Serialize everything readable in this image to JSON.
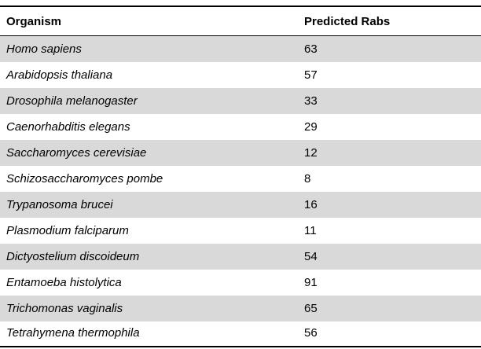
{
  "table": {
    "headers": {
      "organism": "Organism",
      "predicted_rabs": "Predicted Rabs"
    },
    "rows": [
      {
        "organism": "Homo sapiens",
        "predicted_rabs": "63"
      },
      {
        "organism": "Arabidopsis thaliana",
        "predicted_rabs": "57"
      },
      {
        "organism": "Drosophila melanogaster",
        "predicted_rabs": "33"
      },
      {
        "organism": "Caenorhabditis elegans",
        "predicted_rabs": "29"
      },
      {
        "organism": "Saccharomyces cerevisiae",
        "predicted_rabs": "12"
      },
      {
        "organism": "Schizosaccharomyces pombe",
        "predicted_rabs": "8"
      },
      {
        "organism": "Trypanosoma brucei",
        "predicted_rabs": "16"
      },
      {
        "organism": "Plasmodium falciparum",
        "predicted_rabs": "11"
      },
      {
        "organism": "Dictyostelium discoideum",
        "predicted_rabs": "54"
      },
      {
        "organism": "Entamoeba histolytica",
        "predicted_rabs": "91"
      },
      {
        "organism": "Trichomonas vaginalis",
        "predicted_rabs": "65"
      },
      {
        "organism": "Tetrahymena thermophila",
        "predicted_rabs": "56"
      }
    ],
    "colors": {
      "shaded_row": "#d9d9d9",
      "rule": "#000000"
    }
  }
}
